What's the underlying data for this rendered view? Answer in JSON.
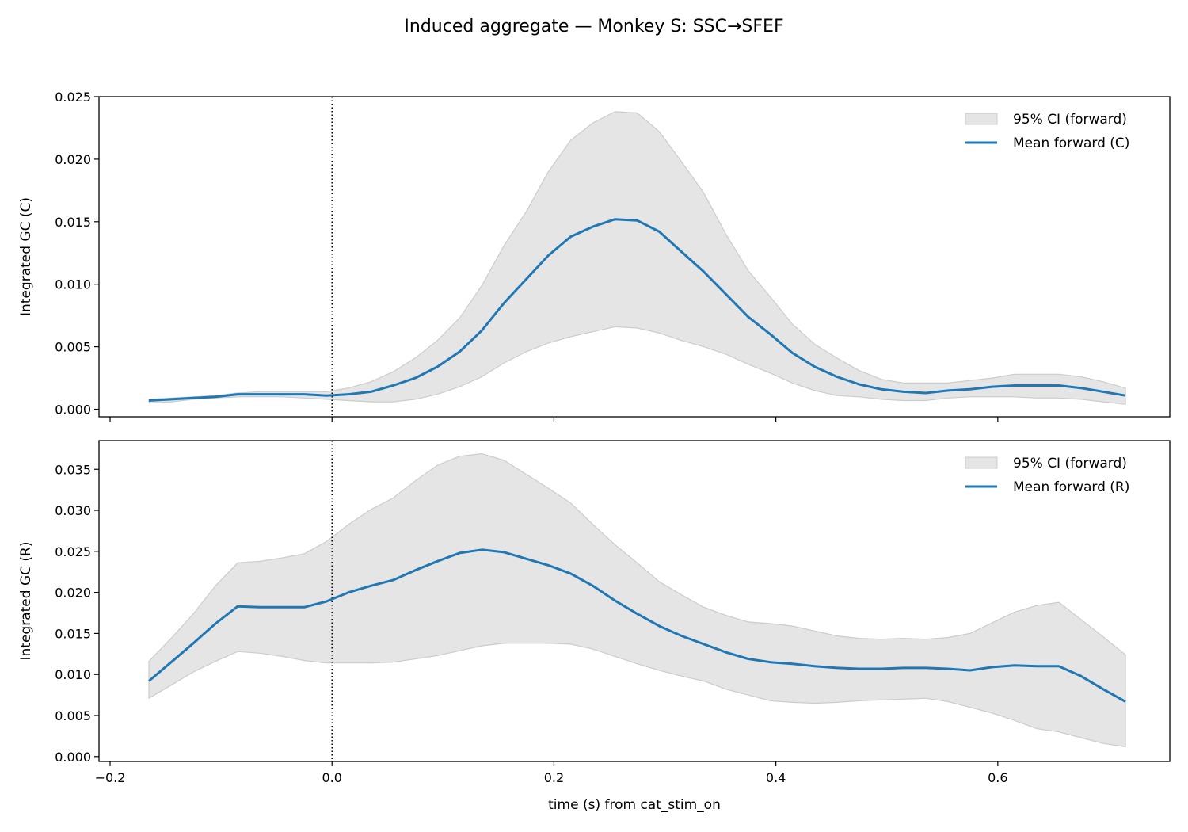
{
  "figure": {
    "title": "Induced aggregate — Monkey S: SSC→SFEF",
    "xlabel": "time (s) from cat_stim_on"
  },
  "colors": {
    "mean_line": "#1f77b4",
    "ci_fill": "#e5e5e5",
    "ci_edge": "#cccccc",
    "axis": "#000000"
  },
  "chart_data": [
    {
      "type": "line",
      "ylabel": "Integrated GC (C)",
      "xlim": [
        -0.21,
        0.755
      ],
      "ylim": [
        -0.0006,
        0.025
      ],
      "yticks": [
        "0.000",
        "0.005",
        "0.010",
        "0.015",
        "0.020",
        "0.025"
      ],
      "ytick_values": [
        0,
        0.005,
        0.01,
        0.015,
        0.02,
        0.025
      ],
      "xticks": [
        "−0.2",
        "0.0",
        "0.2",
        "0.4",
        "0.6"
      ],
      "xtick_values": [
        -0.2,
        0,
        0.2,
        0.4,
        0.6
      ],
      "show_xtick_labels": false,
      "vline_x": 0,
      "legend_position": "top-right",
      "legend": [
        "95% CI (forward)",
        "Mean forward (C)"
      ],
      "x": [
        -0.165,
        -0.145,
        -0.125,
        -0.105,
        -0.085,
        -0.065,
        -0.045,
        -0.025,
        -0.005,
        0.015,
        0.035,
        0.055,
        0.075,
        0.095,
        0.115,
        0.135,
        0.155,
        0.175,
        0.195,
        0.215,
        0.235,
        0.255,
        0.275,
        0.295,
        0.315,
        0.335,
        0.355,
        0.375,
        0.395,
        0.415,
        0.435,
        0.455,
        0.475,
        0.495,
        0.515,
        0.535,
        0.555,
        0.575,
        0.595,
        0.615,
        0.635,
        0.655,
        0.675,
        0.695,
        0.715
      ],
      "series": [
        {
          "name": "Mean forward (C)",
          "values": [
            0.0007,
            0.0008,
            0.0009,
            0.001,
            0.0012,
            0.0012,
            0.0012,
            0.0012,
            0.0011,
            0.0012,
            0.0014,
            0.0019,
            0.0025,
            0.0034,
            0.0046,
            0.0063,
            0.0085,
            0.0104,
            0.0123,
            0.0138,
            0.0146,
            0.0152,
            0.0151,
            0.0142,
            0.0126,
            0.011,
            0.0092,
            0.0074,
            0.006,
            0.0045,
            0.0034,
            0.0026,
            0.002,
            0.0016,
            0.0014,
            0.0013,
            0.0015,
            0.0016,
            0.0018,
            0.0019,
            0.0019,
            0.0019,
            0.0017,
            0.0014,
            0.0011
          ]
        }
      ],
      "ci": {
        "name": "95% CI (forward)",
        "upper": [
          0.0008,
          0.0009,
          0.001,
          0.0011,
          0.0013,
          0.0014,
          0.0014,
          0.0014,
          0.0014,
          0.0017,
          0.0022,
          0.003,
          0.0041,
          0.0055,
          0.0073,
          0.0099,
          0.0131,
          0.0158,
          0.019,
          0.0215,
          0.0229,
          0.0238,
          0.0237,
          0.0222,
          0.0198,
          0.0173,
          0.014,
          0.0111,
          0.009,
          0.0068,
          0.0052,
          0.0041,
          0.0031,
          0.0024,
          0.0021,
          0.0021,
          0.0021,
          0.0023,
          0.0025,
          0.0028,
          0.0028,
          0.0028,
          0.0026,
          0.0022,
          0.0017
        ],
        "lower": [
          0.0005,
          0.0006,
          0.0008,
          0.0009,
          0.001,
          0.001,
          0.001,
          0.0009,
          0.0008,
          0.0007,
          0.0006,
          0.0006,
          0.0008,
          0.0012,
          0.0018,
          0.0026,
          0.0037,
          0.0046,
          0.0053,
          0.0058,
          0.0062,
          0.0066,
          0.0065,
          0.0061,
          0.0055,
          0.005,
          0.0044,
          0.0036,
          0.0029,
          0.0021,
          0.0015,
          0.0011,
          0.001,
          0.0008,
          0.0007,
          0.0007,
          0.0009,
          0.001,
          0.001,
          0.001,
          0.0009,
          0.0009,
          0.0008,
          0.0006,
          0.0004
        ]
      }
    },
    {
      "type": "line",
      "ylabel": "Integrated GC (R)",
      "xlim": [
        -0.21,
        0.755
      ],
      "ylim": [
        -0.0006,
        0.0385
      ],
      "yticks": [
        "0.000",
        "0.005",
        "0.010",
        "0.015",
        "0.020",
        "0.025",
        "0.030",
        "0.035"
      ],
      "ytick_values": [
        0,
        0.005,
        0.01,
        0.015,
        0.02,
        0.025,
        0.03,
        0.035
      ],
      "xticks": [
        "−0.2",
        "0.0",
        "0.2",
        "0.4",
        "0.6"
      ],
      "xtick_values": [
        -0.2,
        0,
        0.2,
        0.4,
        0.6
      ],
      "show_xtick_labels": true,
      "vline_x": 0,
      "legend_position": "top-right",
      "legend": [
        "95% CI (forward)",
        "Mean forward (R)"
      ],
      "x": [
        -0.165,
        -0.145,
        -0.125,
        -0.105,
        -0.085,
        -0.065,
        -0.045,
        -0.025,
        -0.005,
        0.015,
        0.035,
        0.055,
        0.075,
        0.095,
        0.115,
        0.135,
        0.155,
        0.175,
        0.195,
        0.215,
        0.235,
        0.255,
        0.275,
        0.295,
        0.315,
        0.335,
        0.355,
        0.375,
        0.395,
        0.415,
        0.435,
        0.455,
        0.475,
        0.495,
        0.515,
        0.535,
        0.555,
        0.575,
        0.595,
        0.615,
        0.635,
        0.655,
        0.675,
        0.695,
        0.715
      ],
      "series": [
        {
          "name": "Mean forward (R)",
          "values": [
            0.0092,
            0.0115,
            0.0138,
            0.0162,
            0.0183,
            0.0182,
            0.0182,
            0.0182,
            0.0189,
            0.02,
            0.0208,
            0.0215,
            0.0227,
            0.0238,
            0.0248,
            0.0252,
            0.0249,
            0.0241,
            0.0233,
            0.0223,
            0.0208,
            0.019,
            0.0174,
            0.0159,
            0.0147,
            0.0137,
            0.0127,
            0.0119,
            0.0115,
            0.0113,
            0.011,
            0.0108,
            0.0107,
            0.0107,
            0.0108,
            0.0108,
            0.0107,
            0.0105,
            0.0109,
            0.0111,
            0.011,
            0.011,
            0.0098,
            0.0082,
            0.0067
          ]
        }
      ],
      "ci": {
        "name": "95% CI (forward)",
        "upper": [
          0.0116,
          0.0144,
          0.0174,
          0.0208,
          0.0236,
          0.0238,
          0.0242,
          0.0247,
          0.0262,
          0.0283,
          0.0301,
          0.0315,
          0.0336,
          0.0355,
          0.0366,
          0.0369,
          0.0361,
          0.0344,
          0.0327,
          0.0309,
          0.0283,
          0.0258,
          0.0236,
          0.0213,
          0.0197,
          0.0182,
          0.0172,
          0.0164,
          0.0162,
          0.0159,
          0.0153,
          0.0147,
          0.0144,
          0.0143,
          0.0144,
          0.0143,
          0.0145,
          0.015,
          0.0163,
          0.0176,
          0.0184,
          0.0188,
          0.0167,
          0.0146,
          0.0124
        ],
        "lower": [
          0.0071,
          0.0087,
          0.0103,
          0.0116,
          0.0128,
          0.0126,
          0.0122,
          0.0117,
          0.0114,
          0.0114,
          0.0114,
          0.0115,
          0.0119,
          0.0123,
          0.0129,
          0.0135,
          0.0138,
          0.0138,
          0.0138,
          0.0137,
          0.0131,
          0.0122,
          0.0113,
          0.0105,
          0.0098,
          0.0092,
          0.0082,
          0.0075,
          0.0068,
          0.0066,
          0.0065,
          0.0066,
          0.0068,
          0.0069,
          0.007,
          0.0071,
          0.0067,
          0.006,
          0.0053,
          0.0044,
          0.0034,
          0.003,
          0.0023,
          0.0016,
          0.0012
        ]
      }
    }
  ]
}
